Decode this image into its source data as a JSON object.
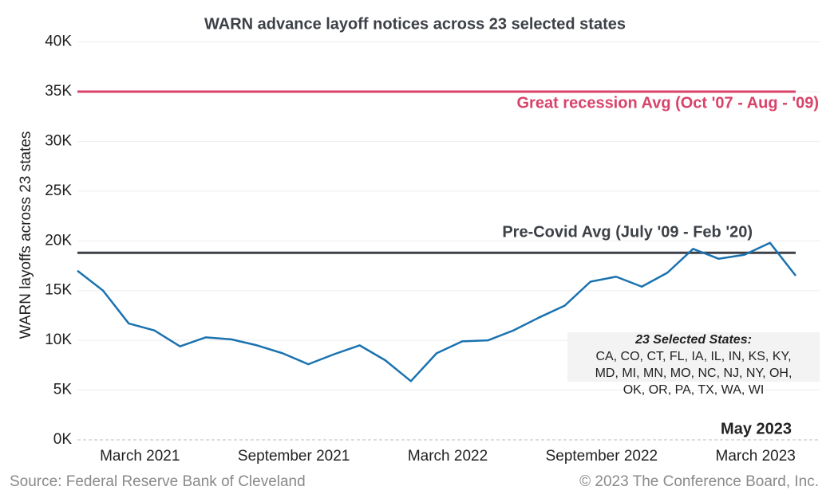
{
  "chart_data": {
    "type": "line",
    "title": "WARN advance layoff notices across 23 selected states",
    "y_label": "WARN layoffs across 23 states",
    "categories": [
      null,
      null,
      "March 2021",
      null,
      null,
      null,
      null,
      null,
      "September 2021",
      null,
      null,
      null,
      null,
      null,
      "March 2022",
      null,
      null,
      null,
      null,
      null,
      "September 2022",
      null,
      null,
      null,
      null,
      null,
      "March 2023",
      null,
      null
    ],
    "series": [
      {
        "name": "WARN layoffs",
        "color": "#1a72b0",
        "values": [
          17000,
          15000,
          11700,
          11000,
          9400,
          10300,
          10100,
          9500,
          8700,
          7600,
          8600,
          9500,
          8000,
          5900,
          8700,
          9900,
          10000,
          11000,
          12300,
          13500,
          15900,
          16400,
          15400,
          16800,
          19200,
          18200,
          18600,
          19800,
          16500
        ]
      }
    ],
    "reference_lines": [
      {
        "label": "Great recession Avg (Oct '07 - Aug - '09)",
        "value": 35000,
        "color": "#d9436a"
      },
      {
        "label": "Pre-Covid Avg (July '09 - Feb '20)",
        "value": 18800,
        "color": "#3d4147"
      }
    ],
    "ylim": [
      0,
      40000
    ],
    "yticks": [
      {
        "value": 0,
        "label": "0K"
      },
      {
        "value": 5000,
        "label": "5K"
      },
      {
        "value": 10000,
        "label": "10K"
      },
      {
        "value": 15000,
        "label": "15K"
      },
      {
        "value": 20000,
        "label": "20K"
      },
      {
        "value": 25000,
        "label": "25K"
      },
      {
        "value": 30000,
        "label": "30K"
      },
      {
        "value": 35000,
        "label": "35K"
      },
      {
        "value": 40000,
        "label": "40K"
      }
    ],
    "grid": true,
    "annotation": "May 2023",
    "note_box": {
      "title": "23 Selected States:",
      "lines": [
        "CA, CO, CT, FL, IA, IL, IN, KS, KY,",
        "MD, MI, MN, MO, NC, NJ, NY, OH,",
        "OK, OR, PA, TX, WA, WI"
      ]
    },
    "source": "Source: Federal Reserve Bank of Cleveland",
    "copyright": "© 2023 The Conference Board, Inc."
  }
}
